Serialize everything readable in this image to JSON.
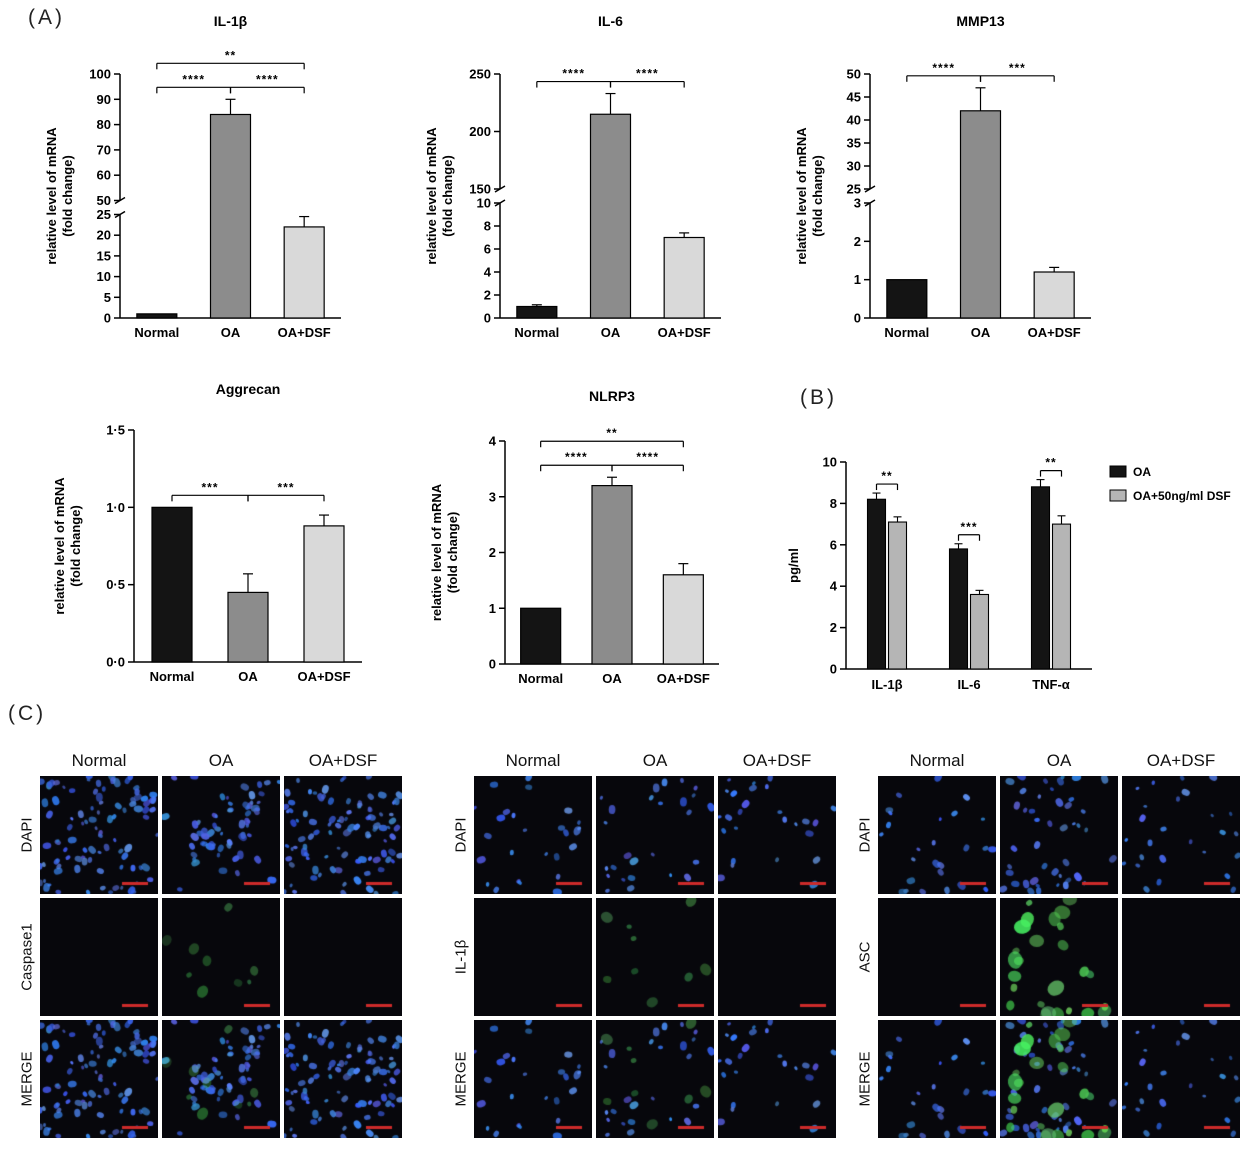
{
  "panels": {
    "a_label": "(A)",
    "b_label": "(B)",
    "c_label": "(C)"
  },
  "chart_data": [
    {
      "id": "il1b",
      "type": "bar",
      "title": "IL-1β",
      "ylabel": "relative level of mRNA\n(fold change)",
      "categories": [
        "Normal",
        "OA",
        "OA+DSF"
      ],
      "values": [
        1,
        84,
        22
      ],
      "errors": [
        0,
        6,
        2.5
      ],
      "bar_colors": [
        "#141414",
        "#8c8c8c",
        "#d9d9d9"
      ],
      "segments": [
        {
          "min": 0,
          "max": 25,
          "ticks": [
            0,
            5,
            10,
            15,
            20,
            25
          ],
          "frac": 0.45
        },
        {
          "min": 50,
          "max": 100,
          "ticks": [
            50,
            60,
            70,
            80,
            90,
            100
          ],
          "frac": 0.55
        }
      ],
      "comparisons": [
        {
          "a": 0,
          "b": 1,
          "label": "****",
          "level": 0
        },
        {
          "a": 1,
          "b": 2,
          "label": "****",
          "level": 0
        },
        {
          "a": 0,
          "b": 2,
          "label": "**",
          "level": 1
        }
      ]
    },
    {
      "id": "il6",
      "type": "bar",
      "title": "IL-6",
      "ylabel": "relative level of mRNA\n(fold change)",
      "categories": [
        "Normal",
        "OA",
        "OA+DSF"
      ],
      "values": [
        1,
        215,
        7
      ],
      "errors": [
        0.15,
        18,
        0.4
      ],
      "bar_colors": [
        "#141414",
        "#8c8c8c",
        "#d9d9d9"
      ],
      "segments": [
        {
          "min": 0,
          "max": 10,
          "ticks": [
            0,
            2,
            4,
            6,
            8,
            10
          ],
          "frac": 0.5
        },
        {
          "min": 150,
          "max": 250,
          "ticks": [
            150,
            200,
            250
          ],
          "frac": 0.5
        }
      ],
      "comparisons": [
        {
          "a": 0,
          "b": 1,
          "label": "****",
          "level": 0
        },
        {
          "a": 1,
          "b": 2,
          "label": "****",
          "level": 0
        }
      ]
    },
    {
      "id": "mmp13",
      "type": "bar",
      "title": "MMP13",
      "ylabel": "relative level of mRNA\n(fold change)",
      "categories": [
        "Normal",
        "OA",
        "OA+DSF"
      ],
      "values": [
        1,
        42,
        1.2
      ],
      "errors": [
        0,
        5,
        0.12
      ],
      "bar_colors": [
        "#141414",
        "#8c8c8c",
        "#d9d9d9"
      ],
      "segments": [
        {
          "min": 0,
          "max": 3,
          "ticks": [
            0,
            1,
            2,
            3
          ],
          "frac": 0.5
        },
        {
          "min": 25,
          "max": 50,
          "ticks": [
            25,
            30,
            35,
            40,
            45,
            50
          ],
          "frac": 0.5
        }
      ],
      "comparisons": [
        {
          "a": 0,
          "b": 1,
          "label": "****",
          "level": 0
        },
        {
          "a": 1,
          "b": 2,
          "label": "***",
          "level": 0
        }
      ]
    },
    {
      "id": "aggrecan",
      "type": "bar",
      "title": "Aggrecan",
      "ylabel": "relative level of mRNA\n(fold change)",
      "categories": [
        "Normal",
        "OA",
        "OA+DSF"
      ],
      "values": [
        1.0,
        0.45,
        0.88
      ],
      "errors": [
        0,
        0.12,
        0.07
      ],
      "bar_colors": [
        "#141414",
        "#8c8c8c",
        "#d9d9d9"
      ],
      "segments": [
        {
          "min": 0,
          "max": 1.5,
          "ticks": [
            0,
            0.5,
            1.0,
            1.5
          ],
          "tick_labels": [
            "0·0",
            "0·5",
            "1·0",
            "1·5"
          ],
          "frac": 1
        }
      ],
      "comparisons": [
        {
          "a": 0,
          "b": 1,
          "label": "***",
          "level": 0
        },
        {
          "a": 1,
          "b": 2,
          "label": "***",
          "level": 0
        }
      ]
    },
    {
      "id": "nlrp3",
      "type": "bar",
      "title": "NLRP3",
      "ylabel": "relative level of mRNA\n(fold change)",
      "categories": [
        "Normal",
        "OA",
        "OA+DSF"
      ],
      "values": [
        1,
        3.2,
        1.6
      ],
      "errors": [
        0,
        0.15,
        0.2
      ],
      "bar_colors": [
        "#141414",
        "#8c8c8c",
        "#d9d9d9"
      ],
      "segments": [
        {
          "min": 0,
          "max": 4,
          "ticks": [
            0,
            1,
            2,
            3,
            4
          ],
          "frac": 1
        }
      ],
      "comparisons": [
        {
          "a": 0,
          "b": 1,
          "label": "****",
          "level": 0
        },
        {
          "a": 1,
          "b": 2,
          "label": "****",
          "level": 0
        },
        {
          "a": 0,
          "b": 2,
          "label": "**",
          "level": 1
        }
      ]
    },
    {
      "id": "elisa",
      "type": "bar",
      "grouped": true,
      "title": "",
      "ylabel": "pg/ml",
      "categories": [
        "IL-1β",
        "IL-6",
        "TNF-α"
      ],
      "series": [
        {
          "name": "OA",
          "color": "#141414",
          "values": [
            8.2,
            5.8,
            8.8
          ],
          "errors": [
            0.3,
            0.25,
            0.35
          ]
        },
        {
          "name": "OA+50ng/ml DSF",
          "color": "#b5b5b5",
          "values": [
            7.1,
            3.6,
            7.0
          ],
          "errors": [
            0.25,
            0.2,
            0.4
          ]
        }
      ],
      "segments": [
        {
          "min": 0,
          "max": 10,
          "ticks": [
            0,
            2,
            4,
            6,
            8,
            10
          ],
          "frac": 1
        }
      ],
      "comparisons": [
        {
          "cat": 0,
          "label": "**"
        },
        {
          "cat": 1,
          "label": "***"
        },
        {
          "cat": 2,
          "label": "**"
        }
      ],
      "legend_position": "right"
    }
  ],
  "microscopy": {
    "scalebar_color": "#cc2a2a",
    "grids": [
      {
        "columns": [
          "Normal",
          "OA",
          "OA+DSF"
        ],
        "rows": [
          {
            "label": "DAPI",
            "cells": [
              {
                "blue": "dense",
                "green": "none"
              },
              {
                "blue": "clustered",
                "green": "none"
              },
              {
                "blue": "dense",
                "green": "none"
              }
            ]
          },
          {
            "label": "Caspase1",
            "cells": [
              {
                "blue": "none",
                "green": "none"
              },
              {
                "blue": "none",
                "green": "weak"
              },
              {
                "blue": "none",
                "green": "none"
              }
            ]
          },
          {
            "label": "MERGE",
            "cells": [
              {
                "blue": "dense",
                "green": "none"
              },
              {
                "blue": "clustered",
                "green": "weak"
              },
              {
                "blue": "dense",
                "green": "none"
              }
            ]
          }
        ]
      },
      {
        "columns": [
          "Normal",
          "OA",
          "OA+DSF"
        ],
        "rows": [
          {
            "label": "DAPI",
            "cells": [
              {
                "blue": "sparse",
                "green": "none"
              },
              {
                "blue": "sparse",
                "green": "none"
              },
              {
                "blue": "sparse",
                "green": "none"
              }
            ]
          },
          {
            "label": "IL-1β",
            "cells": [
              {
                "blue": "none",
                "green": "none"
              },
              {
                "blue": "none",
                "green": "weak"
              },
              {
                "blue": "none",
                "green": "none"
              }
            ]
          },
          {
            "label": "MERGE",
            "cells": [
              {
                "blue": "sparse",
                "green": "none"
              },
              {
                "blue": "sparse",
                "green": "weak"
              },
              {
                "blue": "sparse",
                "green": "none"
              }
            ]
          }
        ]
      },
      {
        "columns": [
          "Normal",
          "OA",
          "OA+DSF"
        ],
        "rows": [
          {
            "label": "DAPI",
            "cells": [
              {
                "blue": "sparse",
                "green": "none"
              },
              {
                "blue": "medium",
                "green": "none"
              },
              {
                "blue": "sparse",
                "green": "none"
              }
            ]
          },
          {
            "label": "ASC",
            "cells": [
              {
                "blue": "none",
                "green": "none"
              },
              {
                "blue": "none",
                "green": "strong"
              },
              {
                "blue": "none",
                "green": "none"
              }
            ]
          },
          {
            "label": "MERGE",
            "cells": [
              {
                "blue": "sparse",
                "green": "none"
              },
              {
                "blue": "medium",
                "green": "strong"
              },
              {
                "blue": "sparse",
                "green": "none"
              }
            ]
          }
        ]
      }
    ]
  }
}
